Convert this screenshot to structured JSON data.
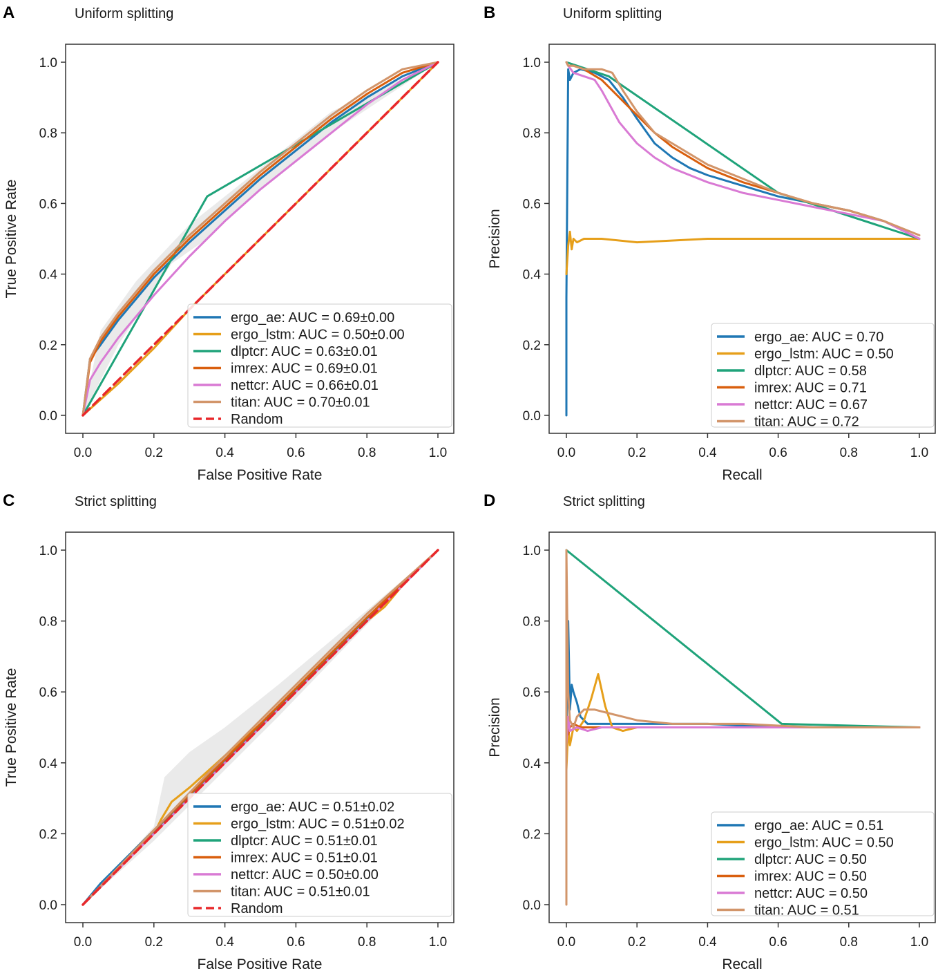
{
  "chart_data": [
    {
      "panel": "A",
      "type": "line",
      "title": "Uniform splitting",
      "xlabel": "False Positive Rate",
      "ylabel": "True Positive Rate",
      "xlim": [
        0,
        1
      ],
      "ylim": [
        0,
        1
      ],
      "xticks": [
        "0.0",
        "0.2",
        "0.4",
        "0.6",
        "0.8",
        "1.0"
      ],
      "yticks": [
        "0.0",
        "0.2",
        "0.4",
        "0.6",
        "0.8",
        "1.0"
      ],
      "legend_position": "lower-right",
      "series": [
        {
          "name": "ergo_ae",
          "label": "ergo_ae: AUC = 0.69±0.00",
          "color": "#1f77b4",
          "dash": false,
          "x": [
            0,
            0.02,
            0.05,
            0.1,
            0.15,
            0.2,
            0.3,
            0.4,
            0.5,
            0.6,
            0.7,
            0.8,
            0.9,
            1.0
          ],
          "y": [
            0,
            0.16,
            0.2,
            0.27,
            0.33,
            0.39,
            0.49,
            0.58,
            0.67,
            0.75,
            0.83,
            0.9,
            0.96,
            1.0
          ]
        },
        {
          "name": "ergo_lstm",
          "label": "ergo_lstm: AUC = 0.50±0.00",
          "color": "#e69f1a",
          "dash": false,
          "x": [
            0,
            0.1,
            0.2,
            0.3,
            0.4,
            0.5,
            0.6,
            0.7,
            0.8,
            0.9,
            1.0
          ],
          "y": [
            0,
            0.09,
            0.19,
            0.3,
            0.4,
            0.5,
            0.6,
            0.7,
            0.8,
            0.9,
            1.0
          ]
        },
        {
          "name": "dlptcr",
          "label": "dlptcr: AUC = 0.63±0.01",
          "color": "#1fa37a",
          "dash": false,
          "x": [
            0,
            0.35,
            1.0
          ],
          "y": [
            0,
            0.62,
            1.0
          ]
        },
        {
          "name": "imrex",
          "label": "imrex: AUC = 0.69±0.01",
          "color": "#d95f0e",
          "dash": false,
          "x": [
            0,
            0.02,
            0.05,
            0.1,
            0.15,
            0.2,
            0.3,
            0.4,
            0.5,
            0.6,
            0.7,
            0.8,
            0.9,
            1.0
          ],
          "y": [
            0,
            0.15,
            0.21,
            0.28,
            0.34,
            0.4,
            0.5,
            0.59,
            0.68,
            0.76,
            0.84,
            0.91,
            0.97,
            1.0
          ]
        },
        {
          "name": "nettcr",
          "label": "nettcr: AUC = 0.66±0.01",
          "color": "#d97ad4",
          "dash": false,
          "x": [
            0,
            0.02,
            0.05,
            0.1,
            0.15,
            0.2,
            0.3,
            0.4,
            0.5,
            0.6,
            0.7,
            0.8,
            0.9,
            1.0
          ],
          "y": [
            0,
            0.1,
            0.15,
            0.22,
            0.28,
            0.34,
            0.45,
            0.55,
            0.64,
            0.72,
            0.8,
            0.88,
            0.95,
            1.0
          ]
        },
        {
          "name": "titan",
          "label": "titan: AUC = 0.70±0.01",
          "color": "#d2956a",
          "dash": false,
          "x": [
            0,
            0.02,
            0.05,
            0.1,
            0.15,
            0.2,
            0.3,
            0.4,
            0.5,
            0.6,
            0.7,
            0.8,
            0.9,
            1.0
          ],
          "y": [
            0,
            0.16,
            0.22,
            0.29,
            0.35,
            0.41,
            0.51,
            0.6,
            0.69,
            0.77,
            0.85,
            0.92,
            0.98,
            1.0
          ]
        },
        {
          "name": "Random",
          "label": "Random",
          "color": "#e8282b",
          "dash": true,
          "x": [
            0,
            1.0
          ],
          "y": [
            0,
            1.0
          ]
        }
      ]
    },
    {
      "panel": "B",
      "type": "line",
      "title": "Uniform splitting",
      "xlabel": "Recall",
      "ylabel": "Precision",
      "xlim": [
        0,
        1
      ],
      "ylim": [
        0,
        1
      ],
      "xticks": [
        "0.0",
        "0.2",
        "0.4",
        "0.6",
        "0.8",
        "1.0"
      ],
      "yticks": [
        "0.0",
        "0.2",
        "0.4",
        "0.6",
        "0.8",
        "1.0"
      ],
      "legend_position": "lower-right",
      "series": [
        {
          "name": "ergo_ae",
          "label": "ergo_ae: AUC = 0.70",
          "color": "#1f77b4",
          "dash": false,
          "x": [
            0,
            0,
            0.005,
            0.01,
            0.02,
            0.04,
            0.08,
            0.12,
            0.16,
            0.2,
            0.25,
            0.3,
            0.35,
            0.4,
            0.5,
            0.6,
            0.7,
            0.8,
            0.9,
            1.0
          ],
          "y": [
            0,
            0.33,
            0.98,
            0.95,
            0.97,
            0.98,
            0.97,
            0.95,
            0.9,
            0.84,
            0.77,
            0.73,
            0.7,
            0.68,
            0.65,
            0.62,
            0.6,
            0.58,
            0.55,
            0.5
          ]
        },
        {
          "name": "ergo_lstm",
          "label": "ergo_lstm: AUC = 0.50",
          "color": "#e69f1a",
          "dash": false,
          "x": [
            0,
            0.005,
            0.01,
            0.015,
            0.02,
            0.03,
            0.05,
            0.1,
            0.2,
            0.4,
            0.6,
            0.8,
            1.0
          ],
          "y": [
            0.4,
            0.48,
            0.52,
            0.47,
            0.5,
            0.49,
            0.5,
            0.5,
            0.49,
            0.5,
            0.5,
            0.5,
            0.5
          ]
        },
        {
          "name": "dlptcr",
          "label": "dlptcr: AUC = 0.58",
          "color": "#1fa37a",
          "dash": false,
          "x": [
            0,
            0.12,
            0.6,
            1.0
          ],
          "y": [
            1.0,
            0.96,
            0.63,
            0.5
          ]
        },
        {
          "name": "imrex",
          "label": "imrex: AUC = 0.71",
          "color": "#d95f0e",
          "dash": false,
          "x": [
            0,
            0.005,
            0.02,
            0.05,
            0.1,
            0.15,
            0.2,
            0.25,
            0.3,
            0.4,
            0.5,
            0.6,
            0.7,
            0.8,
            0.9,
            1.0
          ],
          "y": [
            1.0,
            0.99,
            0.99,
            0.98,
            0.95,
            0.9,
            0.85,
            0.8,
            0.76,
            0.7,
            0.66,
            0.63,
            0.6,
            0.58,
            0.55,
            0.5
          ]
        },
        {
          "name": "nettcr",
          "label": "nettcr: AUC = 0.67",
          "color": "#d97ad4",
          "dash": false,
          "x": [
            0,
            0.005,
            0.02,
            0.05,
            0.08,
            0.1,
            0.15,
            0.2,
            0.25,
            0.3,
            0.4,
            0.5,
            0.6,
            0.7,
            0.8,
            0.9,
            1.0
          ],
          "y": [
            1.0,
            0.99,
            0.97,
            0.96,
            0.95,
            0.92,
            0.83,
            0.77,
            0.73,
            0.7,
            0.66,
            0.63,
            0.61,
            0.59,
            0.57,
            0.55,
            0.5
          ]
        },
        {
          "name": "titan",
          "label": "titan: AUC = 0.72",
          "color": "#d2956a",
          "dash": false,
          "x": [
            0,
            0.005,
            0.02,
            0.05,
            0.1,
            0.13,
            0.16,
            0.2,
            0.25,
            0.3,
            0.4,
            0.5,
            0.6,
            0.7,
            0.8,
            0.9,
            1.0
          ],
          "y": [
            1.0,
            0.99,
            0.99,
            0.98,
            0.98,
            0.97,
            0.92,
            0.86,
            0.8,
            0.77,
            0.71,
            0.67,
            0.63,
            0.6,
            0.58,
            0.55,
            0.51
          ]
        }
      ]
    },
    {
      "panel": "C",
      "type": "line",
      "title": "Strict splitting",
      "xlabel": "False Positive Rate",
      "ylabel": "True Positive Rate",
      "xlim": [
        0,
        1
      ],
      "ylim": [
        0,
        1
      ],
      "xticks": [
        "0.0",
        "0.2",
        "0.4",
        "0.6",
        "0.8",
        "1.0"
      ],
      "yticks": [
        "0.0",
        "0.2",
        "0.4",
        "0.6",
        "0.8",
        "1.0"
      ],
      "legend_position": "lower-right",
      "series": [
        {
          "name": "ergo_ae",
          "label": "ergo_ae: AUC = 0.51±0.02",
          "color": "#1f77b4",
          "dash": false,
          "x": [
            0,
            0.05,
            0.1,
            0.2,
            0.3,
            0.4,
            0.5,
            0.6,
            0.7,
            0.8,
            0.9,
            1.0
          ],
          "y": [
            0,
            0.06,
            0.11,
            0.21,
            0.31,
            0.41,
            0.51,
            0.61,
            0.71,
            0.81,
            0.9,
            1.0
          ]
        },
        {
          "name": "ergo_lstm",
          "label": "ergo_lstm: AUC = 0.51±0.02",
          "color": "#e69f1a",
          "dash": false,
          "x": [
            0,
            0.1,
            0.2,
            0.22,
            0.25,
            0.3,
            0.4,
            0.5,
            0.6,
            0.7,
            0.8,
            0.85,
            0.9,
            1.0
          ],
          "y": [
            0,
            0.1,
            0.2,
            0.24,
            0.29,
            0.33,
            0.42,
            0.51,
            0.61,
            0.71,
            0.8,
            0.84,
            0.9,
            1.0
          ]
        },
        {
          "name": "dlptcr",
          "label": "dlptcr: AUC = 0.51±0.01",
          "color": "#1fa37a",
          "dash": false,
          "x": [
            0,
            0.5,
            1.0
          ],
          "y": [
            0,
            0.505,
            1.0
          ]
        },
        {
          "name": "imrex",
          "label": "imrex: AUC = 0.51±0.01",
          "color": "#d95f0e",
          "dash": false,
          "x": [
            0,
            0.2,
            0.4,
            0.6,
            0.8,
            1.0
          ],
          "y": [
            0,
            0.21,
            0.41,
            0.61,
            0.81,
            1.0
          ]
        },
        {
          "name": "nettcr",
          "label": "nettcr: AUC = 0.50±0.00",
          "color": "#d97ad4",
          "dash": false,
          "x": [
            0,
            1.0
          ],
          "y": [
            0,
            1.0
          ]
        },
        {
          "name": "titan",
          "label": "titan: AUC = 0.51±0.01",
          "color": "#d2956a",
          "dash": false,
          "x": [
            0,
            0.2,
            0.4,
            0.6,
            0.8,
            0.9,
            1.0
          ],
          "y": [
            0,
            0.21,
            0.42,
            0.62,
            0.82,
            0.91,
            1.0
          ]
        },
        {
          "name": "Random",
          "label": "Random",
          "color": "#e8282b",
          "dash": true,
          "x": [
            0,
            1.0
          ],
          "y": [
            0,
            1.0
          ]
        }
      ]
    },
    {
      "panel": "D",
      "type": "line",
      "title": "Strict splitting",
      "xlabel": "Recall",
      "ylabel": "Precision",
      "xlim": [
        0,
        1
      ],
      "ylim": [
        0,
        1
      ],
      "xticks": [
        "0.0",
        "0.2",
        "0.4",
        "0.6",
        "0.8",
        "1.0"
      ],
      "yticks": [
        "0.0",
        "0.2",
        "0.4",
        "0.6",
        "0.8",
        "1.0"
      ],
      "legend_position": "lower-right",
      "series": [
        {
          "name": "ergo_ae",
          "label": "ergo_ae: AUC = 0.51",
          "color": "#1f77b4",
          "dash": false,
          "x": [
            0,
            0.005,
            0.01,
            0.015,
            0.02,
            0.03,
            0.04,
            0.06,
            0.1,
            0.2,
            0.4,
            0.6,
            0.8,
            1.0
          ],
          "y": [
            0.42,
            0.8,
            0.55,
            0.62,
            0.6,
            0.57,
            0.53,
            0.51,
            0.51,
            0.51,
            0.51,
            0.5,
            0.5,
            0.5
          ]
        },
        {
          "name": "ergo_lstm",
          "label": "ergo_lstm: AUC = 0.50",
          "color": "#e69f1a",
          "dash": false,
          "x": [
            0,
            0.005,
            0.01,
            0.02,
            0.03,
            0.05,
            0.07,
            0.09,
            0.11,
            0.13,
            0.16,
            0.2,
            0.3,
            0.5,
            1.0
          ],
          "y": [
            0.38,
            0.5,
            0.45,
            0.5,
            0.49,
            0.52,
            0.58,
            0.65,
            0.56,
            0.5,
            0.49,
            0.5,
            0.5,
            0.5,
            0.5
          ]
        },
        {
          "name": "dlptcr",
          "label": "dlptcr: AUC = 0.50",
          "color": "#1fa37a",
          "dash": false,
          "x": [
            0,
            0.61,
            1.0
          ],
          "y": [
            1.0,
            0.51,
            0.5
          ]
        },
        {
          "name": "imrex",
          "label": "imrex: AUC = 0.50",
          "color": "#d95f0e",
          "dash": false,
          "x": [
            0,
            0.005,
            0.01,
            0.02,
            0.04,
            0.1,
            0.3,
            0.6,
            1.0
          ],
          "y": [
            0.5,
            0.48,
            0.5,
            0.51,
            0.5,
            0.5,
            0.5,
            0.5,
            0.5
          ]
        },
        {
          "name": "nettcr",
          "label": "nettcr: AUC = 0.50",
          "color": "#d97ad4",
          "dash": false,
          "x": [
            0,
            0.005,
            0.01,
            0.03,
            0.06,
            0.1,
            0.3,
            0.6,
            1.0
          ],
          "y": [
            0.45,
            0.53,
            0.49,
            0.5,
            0.49,
            0.5,
            0.5,
            0.5,
            0.5
          ]
        },
        {
          "name": "titan",
          "label": "titan: AUC = 0.51",
          "color": "#d2956a",
          "dash": false,
          "x": [
            0,
            0,
            0.005,
            0.01,
            0.02,
            0.03,
            0.05,
            0.08,
            0.12,
            0.16,
            0.2,
            0.3,
            0.5,
            0.7,
            1.0
          ],
          "y": [
            0,
            1.0,
            0.6,
            0.52,
            0.5,
            0.53,
            0.55,
            0.55,
            0.54,
            0.53,
            0.52,
            0.51,
            0.51,
            0.5,
            0.5
          ]
        }
      ]
    }
  ]
}
